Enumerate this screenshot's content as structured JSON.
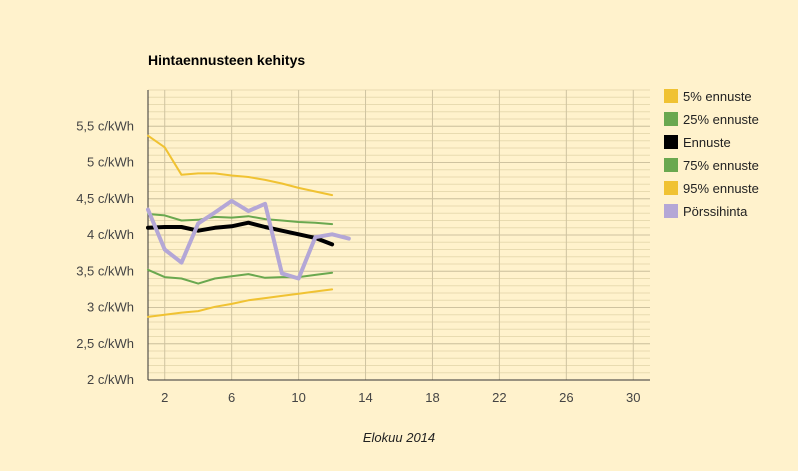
{
  "chart_data": {
    "type": "line",
    "title": "Hintaennusteen kehitys",
    "xlabel": "Elokuu 2014",
    "ylabel": "",
    "xlim": [
      1,
      31
    ],
    "ylim": [
      2,
      6
    ],
    "x_ticks": [
      2,
      6,
      10,
      14,
      18,
      22,
      26,
      30
    ],
    "y_ticks": [
      {
        "value": 2,
        "label": "2 c/kWh"
      },
      {
        "value": 2.5,
        "label": "2,5 c/kWh"
      },
      {
        "value": 3,
        "label": "3 c/kWh"
      },
      {
        "value": 3.5,
        "label": "3,5 c/kWh"
      },
      {
        "value": 4,
        "label": "4 c/kWh"
      },
      {
        "value": 4.5,
        "label": "4,5 c/kWh"
      },
      {
        "value": 5,
        "label": "5 c/kWh"
      },
      {
        "value": 5.5,
        "label": "5,5 c/kWh"
      }
    ],
    "grid": true,
    "legend_position": "right",
    "series": [
      {
        "name": "5% ennuste",
        "color": "#f0c232",
        "width": 2,
        "x": [
          1,
          2,
          3,
          4,
          5,
          6,
          7,
          8,
          9,
          10,
          11,
          12
        ],
        "values": [
          2.87,
          2.9,
          2.93,
          2.95,
          3.01,
          3.05,
          3.1,
          3.13,
          3.16,
          3.19,
          3.22,
          3.25
        ]
      },
      {
        "name": "25% ennuste",
        "color": "#6aa84f",
        "width": 2,
        "x": [
          1,
          2,
          3,
          4,
          5,
          6,
          7,
          8,
          9,
          10,
          11,
          12
        ],
        "values": [
          3.52,
          3.42,
          3.4,
          3.33,
          3.4,
          3.43,
          3.46,
          3.41,
          3.42,
          3.42,
          3.45,
          3.48
        ]
      },
      {
        "name": "Ennuste",
        "color": "#000000",
        "width": 4,
        "x": [
          1,
          2,
          3,
          4,
          5,
          6,
          7,
          8,
          9,
          10,
          11,
          12
        ],
        "values": [
          4.1,
          4.11,
          4.11,
          4.06,
          4.1,
          4.12,
          4.17,
          4.11,
          4.06,
          4.01,
          3.96,
          3.87
        ]
      },
      {
        "name": "75% ennuste",
        "color": "#6aa84f",
        "width": 2,
        "x": [
          1,
          2,
          3,
          4,
          5,
          6,
          7,
          8,
          9,
          10,
          11,
          12
        ],
        "values": [
          4.29,
          4.27,
          4.2,
          4.21,
          4.25,
          4.24,
          4.26,
          4.22,
          4.2,
          4.18,
          4.17,
          4.15
        ]
      },
      {
        "name": "95% ennuste",
        "color": "#f0c232",
        "width": 2,
        "x": [
          1,
          2,
          3,
          4,
          5,
          6,
          7,
          8,
          9,
          10,
          11,
          12
        ],
        "values": [
          5.37,
          5.21,
          4.83,
          4.85,
          4.85,
          4.82,
          4.8,
          4.76,
          4.71,
          4.65,
          4.6,
          4.55
        ]
      },
      {
        "name": "Pörssihinta",
        "color": "#b4a7d6",
        "width": 4,
        "x": [
          1,
          2,
          3,
          4,
          5,
          6,
          7,
          8,
          9,
          10,
          11,
          12,
          13
        ],
        "values": [
          4.35,
          3.8,
          3.62,
          4.16,
          4.31,
          4.47,
          4.33,
          4.43,
          3.47,
          3.4,
          3.97,
          4.01,
          3.95
        ]
      }
    ]
  }
}
